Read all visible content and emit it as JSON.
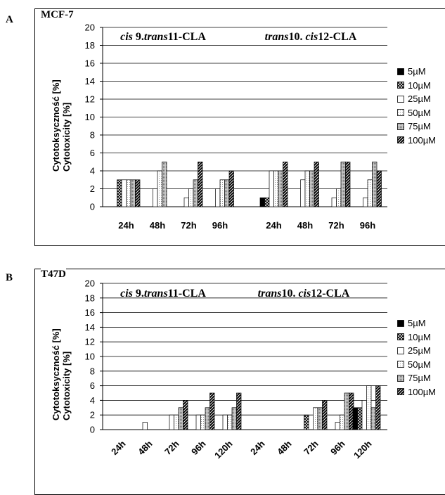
{
  "chart_data": [
    {
      "id": "A",
      "type": "bar",
      "panel_letter": "A",
      "cell_label": "MCF-7",
      "ylabel_lines": [
        "Cytotoksyczność [%]",
        "Cytotoxicity [%]"
      ],
      "ylim": [
        0,
        20
      ],
      "yticks": [
        0,
        2,
        4,
        6,
        8,
        10,
        12,
        14,
        16,
        18,
        20
      ],
      "grid": true,
      "legend_position": "right",
      "series_names": [
        "5µM",
        "10µM",
        "25µM",
        "50µM",
        "75µM",
        "100µM"
      ],
      "groups": [
        {
          "title_parts": [
            {
              "t": "cis",
              "i": true
            },
            {
              "t": " 9.",
              "i": false
            },
            {
              "t": "trans",
              "i": true
            },
            {
              "t": "11-CLA",
              "i": false
            }
          ],
          "categories": [
            "24h",
            "48h",
            "72h",
            "96h"
          ],
          "values": [
            [
              0,
              3,
              3,
              3,
              3,
              3
            ],
            [
              0,
              0,
              2,
              4,
              5,
              0
            ],
            [
              0,
              0,
              1,
              2,
              3,
              5
            ],
            [
              0,
              0,
              2,
              3,
              3,
              4
            ]
          ]
        },
        {
          "title_parts": [
            {
              "t": "trans",
              "i": true
            },
            {
              "t": "10. ",
              "i": false
            },
            {
              "t": "cis",
              "i": true
            },
            {
              "t": "12-CLA",
              "i": false
            }
          ],
          "categories": [
            "24h",
            "48h",
            "72h",
            "96h"
          ],
          "values": [
            [
              1,
              1,
              4,
              4,
              4,
              5
            ],
            [
              0,
              0,
              3,
              4,
              4,
              5
            ],
            [
              0,
              0,
              1,
              2,
              5,
              5
            ],
            [
              0,
              0,
              1,
              3,
              5,
              4
            ]
          ]
        }
      ]
    },
    {
      "id": "B",
      "type": "bar",
      "panel_letter": "B",
      "cell_label": "T47D",
      "ylabel_lines": [
        "Cytotoksyczność [%]",
        "Cytotoxicity [%]"
      ],
      "ylim": [
        0,
        20
      ],
      "yticks": [
        0,
        2,
        4,
        6,
        8,
        10,
        12,
        14,
        16,
        18,
        20
      ],
      "grid": true,
      "legend_position": "right",
      "series_names": [
        "5µM",
        "10µM",
        "25µM",
        "50µM",
        "75µM",
        "100µM"
      ],
      "groups": [
        {
          "title_parts": [
            {
              "t": "cis",
              "i": true
            },
            {
              "t": " 9.",
              "i": false
            },
            {
              "t": "trans",
              "i": true
            },
            {
              "t": "11-CLA",
              "i": false
            }
          ],
          "categories": [
            "24h",
            "48h",
            "72h",
            "96h",
            "120h"
          ],
          "values": [
            [
              0,
              0,
              0,
              0,
              0,
              0
            ],
            [
              0,
              0,
              1,
              0,
              0,
              0
            ],
            [
              0,
              0,
              2,
              2,
              3,
              4
            ],
            [
              0,
              0,
              2,
              2,
              3,
              5
            ],
            [
              0,
              0,
              2,
              2,
              3,
              5
            ]
          ]
        },
        {
          "title_parts": [
            {
              "t": "trans",
              "i": true
            },
            {
              "t": "10. ",
              "i": false
            },
            {
              "t": "cis",
              "i": true
            },
            {
              "t": "12-CLA",
              "i": false
            }
          ],
          "categories": [
            "24h",
            "48h",
            "72h",
            "96h",
            "120h"
          ],
          "values": [
            [
              0,
              0,
              0,
              0,
              0,
              0
            ],
            [
              0,
              0,
              0,
              0,
              0,
              0
            ],
            [
              0,
              2,
              0,
              3,
              3,
              4
            ],
            [
              0,
              0,
              1,
              2,
              5,
              5
            ],
            [
              3,
              3,
              4,
              6,
              3,
              6
            ]
          ]
        }
      ]
    }
  ]
}
